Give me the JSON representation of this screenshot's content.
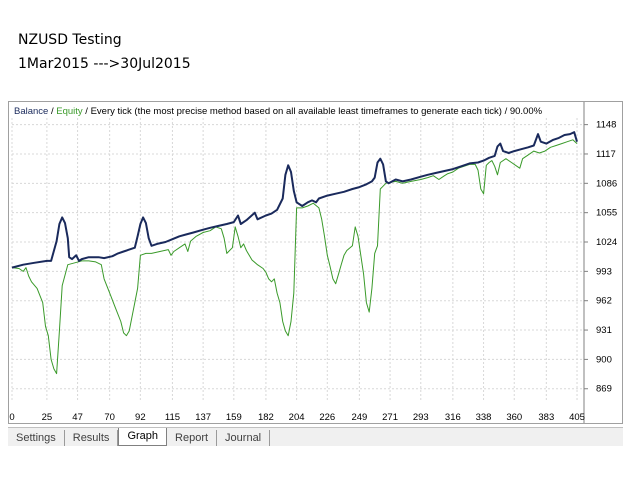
{
  "captions": {
    "title": "NZUSD Testing",
    "period": "1Mar2015 --->30Jul2015"
  },
  "colors": {
    "balance": "#1a2a5c",
    "equity": "#3a9a2a",
    "grid": "#d8d8d8",
    "axis_text": "#000000"
  },
  "tabs": [
    {
      "label": "Settings",
      "active": false
    },
    {
      "label": "Results",
      "active": false
    },
    {
      "label": "Graph",
      "active": true
    },
    {
      "label": "Report",
      "active": false
    },
    {
      "label": "Journal",
      "active": false
    }
  ],
  "chart_data": {
    "type": "line",
    "header": {
      "balance_label": "Balance",
      "sep1": " / ",
      "equity_label": "Equity",
      "rest": " / Every tick (the most precise method based on all available least timeframes to generate each tick) / 90.00%"
    },
    "x_ticks": [
      "0",
      "25",
      "47",
      "70",
      "92",
      "115",
      "137",
      "159",
      "182",
      "204",
      "226",
      "249",
      "271",
      "293",
      "316",
      "338",
      "360",
      "383",
      "405"
    ],
    "y_ticks": [
      "1148",
      "1117",
      "1086",
      "1055",
      "1024",
      "993",
      "962",
      "931",
      "900",
      "869"
    ],
    "xlim": [
      0,
      410
    ],
    "ylim": [
      855,
      1155
    ],
    "grid": true,
    "series": [
      {
        "name": "Balance",
        "points": [
          [
            0,
            997
          ],
          [
            8,
            1000
          ],
          [
            16,
            1002
          ],
          [
            25,
            1004
          ],
          [
            28,
            1004
          ],
          [
            32,
            1025
          ],
          [
            34,
            1043
          ],
          [
            36,
            1050
          ],
          [
            38,
            1044
          ],
          [
            40,
            1028
          ],
          [
            41,
            1008
          ],
          [
            43,
            1006
          ],
          [
            46,
            1010
          ],
          [
            48,
            1004
          ],
          [
            50,
            1006
          ],
          [
            55,
            1008
          ],
          [
            62,
            1008
          ],
          [
            66,
            1007
          ],
          [
            72,
            1009
          ],
          [
            76,
            1012
          ],
          [
            80,
            1014
          ],
          [
            84,
            1016
          ],
          [
            88,
            1018
          ],
          [
            90,
            1030
          ],
          [
            92,
            1043
          ],
          [
            94,
            1050
          ],
          [
            96,
            1044
          ],
          [
            98,
            1028
          ],
          [
            100,
            1020
          ],
          [
            104,
            1022
          ],
          [
            110,
            1024
          ],
          [
            115,
            1027
          ],
          [
            120,
            1030
          ],
          [
            125,
            1032
          ],
          [
            130,
            1034
          ],
          [
            137,
            1037
          ],
          [
            142,
            1039
          ],
          [
            148,
            1041
          ],
          [
            154,
            1043
          ],
          [
            159,
            1045
          ],
          [
            162,
            1052
          ],
          [
            164,
            1043
          ],
          [
            168,
            1047
          ],
          [
            174,
            1055
          ],
          [
            176,
            1048
          ],
          [
            182,
            1052
          ],
          [
            186,
            1054
          ],
          [
            190,
            1058
          ],
          [
            194,
            1070
          ],
          [
            196,
            1095
          ],
          [
            198,
            1105
          ],
          [
            200,
            1098
          ],
          [
            202,
            1078
          ],
          [
            204,
            1066
          ],
          [
            208,
            1062
          ],
          [
            212,
            1066
          ],
          [
            215,
            1068
          ],
          [
            218,
            1066
          ],
          [
            220,
            1070
          ],
          [
            226,
            1073
          ],
          [
            232,
            1075
          ],
          [
            238,
            1077
          ],
          [
            244,
            1080
          ],
          [
            249,
            1082
          ],
          [
            254,
            1085
          ],
          [
            258,
            1088
          ],
          [
            260,
            1092
          ],
          [
            262,
            1108
          ],
          [
            264,
            1112
          ],
          [
            266,
            1106
          ],
          [
            268,
            1088
          ],
          [
            270,
            1086
          ],
          [
            275,
            1090
          ],
          [
            280,
            1088
          ],
          [
            286,
            1090
          ],
          [
            293,
            1093
          ],
          [
            298,
            1095
          ],
          [
            304,
            1097
          ],
          [
            310,
            1099
          ],
          [
            316,
            1101
          ],
          [
            322,
            1104
          ],
          [
            328,
            1107
          ],
          [
            334,
            1108
          ],
          [
            338,
            1110
          ],
          [
            342,
            1113
          ],
          [
            346,
            1115
          ],
          [
            348,
            1125
          ],
          [
            350,
            1128
          ],
          [
            352,
            1120
          ],
          [
            356,
            1118
          ],
          [
            360,
            1120
          ],
          [
            365,
            1122
          ],
          [
            370,
            1124
          ],
          [
            374,
            1126
          ],
          [
            377,
            1138
          ],
          [
            379,
            1130
          ],
          [
            383,
            1128
          ],
          [
            388,
            1132
          ],
          [
            392,
            1134
          ],
          [
            396,
            1137
          ],
          [
            400,
            1138
          ],
          [
            403,
            1140
          ],
          [
            405,
            1130
          ]
        ]
      },
      {
        "name": "Equity",
        "points": [
          [
            0,
            997
          ],
          [
            5,
            996
          ],
          [
            8,
            993
          ],
          [
            10,
            997
          ],
          [
            12,
            988
          ],
          [
            14,
            982
          ],
          [
            18,
            975
          ],
          [
            22,
            960
          ],
          [
            24,
            935
          ],
          [
            26,
            925
          ],
          [
            28,
            900
          ],
          [
            30,
            890
          ],
          [
            32,
            885
          ],
          [
            34,
            930
          ],
          [
            36,
            978
          ],
          [
            40,
            1000
          ],
          [
            45,
            1002
          ],
          [
            50,
            1004
          ],
          [
            55,
            1004
          ],
          [
            60,
            1003
          ],
          [
            64,
            1000
          ],
          [
            66,
            985
          ],
          [
            70,
            970
          ],
          [
            74,
            955
          ],
          [
            78,
            940
          ],
          [
            80,
            928
          ],
          [
            82,
            925
          ],
          [
            84,
            930
          ],
          [
            86,
            945
          ],
          [
            88,
            960
          ],
          [
            90,
            975
          ],
          [
            92,
            1010
          ],
          [
            96,
            1012
          ],
          [
            100,
            1012
          ],
          [
            106,
            1014
          ],
          [
            112,
            1016
          ],
          [
            114,
            1010
          ],
          [
            116,
            1014
          ],
          [
            120,
            1018
          ],
          [
            124,
            1022
          ],
          [
            126,
            1014
          ],
          [
            128,
            1025
          ],
          [
            132,
            1030
          ],
          [
            137,
            1034
          ],
          [
            142,
            1036
          ],
          [
            146,
            1040
          ],
          [
            150,
            1038
          ],
          [
            152,
            1028
          ],
          [
            154,
            1012
          ],
          [
            156,
            1015
          ],
          [
            158,
            1018
          ],
          [
            160,
            1040
          ],
          [
            162,
            1030
          ],
          [
            164,
            1018
          ],
          [
            166,
            1022
          ],
          [
            168,
            1015
          ],
          [
            170,
            1010
          ],
          [
            172,
            1005
          ],
          [
            176,
            1000
          ],
          [
            180,
            996
          ],
          [
            182,
            992
          ],
          [
            184,
            985
          ],
          [
            186,
            982
          ],
          [
            188,
            985
          ],
          [
            190,
            970
          ],
          [
            192,
            960
          ],
          [
            194,
            940
          ],
          [
            196,
            930
          ],
          [
            198,
            925
          ],
          [
            200,
            940
          ],
          [
            202,
            970
          ],
          [
            204,
            1060
          ],
          [
            208,
            1060
          ],
          [
            212,
            1062
          ],
          [
            216,
            1065
          ],
          [
            220,
            1060
          ],
          [
            222,
            1048
          ],
          [
            224,
            1030
          ],
          [
            226,
            1010
          ],
          [
            228,
            998
          ],
          [
            230,
            985
          ],
          [
            232,
            980
          ],
          [
            234,
            990
          ],
          [
            236,
            1000
          ],
          [
            238,
            1010
          ],
          [
            240,
            1015
          ],
          [
            244,
            1020
          ],
          [
            246,
            1040
          ],
          [
            248,
            1030
          ],
          [
            250,
            1010
          ],
          [
            252,
            990
          ],
          [
            254,
            960
          ],
          [
            256,
            950
          ],
          [
            258,
            975
          ],
          [
            260,
            1012
          ],
          [
            262,
            1020
          ],
          [
            264,
            1080
          ],
          [
            268,
            1086
          ],
          [
            275,
            1088
          ],
          [
            280,
            1086
          ],
          [
            286,
            1088
          ],
          [
            293,
            1090
          ],
          [
            298,
            1092
          ],
          [
            302,
            1094
          ],
          [
            306,
            1090
          ],
          [
            308,
            1092
          ],
          [
            310,
            1094
          ],
          [
            312,
            1096
          ],
          [
            316,
            1098
          ],
          [
            320,
            1102
          ],
          [
            324,
            1104
          ],
          [
            328,
            1106
          ],
          [
            332,
            1106
          ],
          [
            334,
            1100
          ],
          [
            336,
            1080
          ],
          [
            338,
            1075
          ],
          [
            340,
            1105
          ],
          [
            342,
            1108
          ],
          [
            344,
            1110
          ],
          [
            346,
            1104
          ],
          [
            348,
            1095
          ],
          [
            350,
            1108
          ],
          [
            354,
            1112
          ],
          [
            358,
            1108
          ],
          [
            362,
            1104
          ],
          [
            364,
            1102
          ],
          [
            366,
            1112
          ],
          [
            370,
            1116
          ],
          [
            374,
            1120
          ],
          [
            378,
            1118
          ],
          [
            382,
            1120
          ],
          [
            386,
            1124
          ],
          [
            390,
            1126
          ],
          [
            394,
            1128
          ],
          [
            398,
            1130
          ],
          [
            402,
            1132
          ],
          [
            405,
            1128
          ]
        ]
      }
    ]
  }
}
